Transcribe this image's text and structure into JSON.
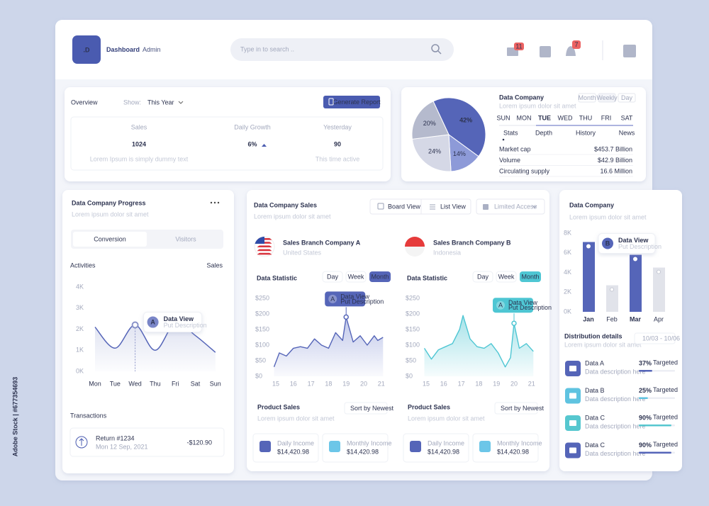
{
  "watermark": "Adobe Stock | #677354693",
  "header": {
    "logo": ".D",
    "title_bold": "Dashboard",
    "title_light": "Admin",
    "search_placeholder": "Type in to search ..",
    "mail_badge": "11",
    "bell_badge": "7"
  },
  "overview": {
    "title": "Overview",
    "show_label": "Show:",
    "show_value": "This Year",
    "button": "Generate Report",
    "stats": [
      {
        "label": "Sales",
        "value": "1024",
        "note": "Lorem Ipsum is simply dummy text"
      },
      {
        "label": "Daily Growth",
        "value": "6%"
      },
      {
        "label": "Yesterday",
        "value": "90",
        "note": "This time active"
      }
    ]
  },
  "market": {
    "pie": {
      "type": "pie",
      "values": [
        42,
        14,
        24,
        20
      ],
      "value_labels": [
        "42%",
        "14%",
        "24%",
        "20%"
      ],
      "colors": [
        "#5565b8",
        "#8d9ad8",
        "#d5d8e6",
        "#b5bacd"
      ]
    },
    "title": "Data Company",
    "subtitle": "Lorem ipsum dolor sit amet",
    "toggles": [
      "Month",
      "Weekly",
      "Day"
    ],
    "days": [
      "SUN",
      "MON",
      "TUE",
      "WED",
      "THU",
      "FRI",
      "SAT"
    ],
    "active_day": "TUE",
    "tabs": [
      "Stats",
      "Depth",
      "History",
      "News"
    ],
    "rows": [
      {
        "label": "Market cap",
        "value": "$453.7 Billion"
      },
      {
        "label": "Volume",
        "value": "$42.9 Billion"
      },
      {
        "label": "Circulating supply",
        "value": "16.6 Million"
      }
    ]
  },
  "progress": {
    "title": "Data Company Progress",
    "subtitle": "Lorem ipsum dolor sit amet",
    "tabs": [
      "Conversion",
      "Visitors"
    ],
    "chart_title": "Activities",
    "chart_side": "Sales",
    "chart": {
      "type": "line",
      "categories": [
        "Mon",
        "Tue",
        "Wed",
        "Thu",
        "Fri",
        "Sat",
        "Sun"
      ],
      "values": [
        2100,
        1100,
        2200,
        1000,
        2300,
        1700,
        900
      ],
      "ylim": [
        0,
        4000
      ],
      "yticks": [
        {
          "value": 0,
          "label": "0K"
        },
        {
          "value": 1000,
          "label": "1K"
        },
        {
          "value": 2000,
          "label": "2K"
        },
        {
          "value": 3000,
          "label": "3K"
        },
        {
          "value": 4000,
          "label": "4K"
        }
      ],
      "color": "#5565b8",
      "highlight": "Wed",
      "tooltip": {
        "badge": "A",
        "title": "Data View",
        "text": "Put Description"
      }
    },
    "transactions": {
      "title": "Transactions",
      "items": [
        {
          "title": "Return #1234",
          "date": "Mon 12 Sep, 2021",
          "amount": "-$120.90"
        }
      ]
    }
  },
  "sales": {
    "title": "Data Company Sales",
    "subtitle": "Lorem ipsum dolor sit amet",
    "views": [
      "Board View",
      "List View"
    ],
    "access": "Limited Access",
    "branches": [
      {
        "name": "Sales Branch Company A",
        "country": "United States",
        "stats": {
          "title": "Data Statistic",
          "periods": [
            "Day",
            "Week",
            "Month"
          ],
          "active": "Month",
          "chart": {
            "type": "line",
            "x": [
              14.9,
              15.2,
              15.6,
              16,
              16.4,
              16.8,
              17.2,
              17.6,
              18,
              18.4,
              18.8,
              19,
              19.4,
              19.8,
              20.2,
              20.6,
              20.8,
              21.1
            ],
            "values": [
              30,
              75,
              65,
              90,
              95,
              90,
              120,
              100,
              90,
              140,
              115,
              190,
              110,
              130,
              100,
              130,
              115,
              125
            ],
            "xlim": [
              14.8,
              21.1
            ],
            "xticks": [
              15,
              16,
              17,
              18,
              19,
              20,
              21
            ],
            "ylim": [
              0,
              250
            ],
            "yticks": [
              {
                "value": 0,
                "label": "$0"
              },
              {
                "value": 50,
                "label": "$50"
              },
              {
                "value": 100,
                "label": "$100"
              },
              {
                "value": 150,
                "label": "$150"
              },
              {
                "value": 200,
                "label": "$200"
              },
              {
                "value": 250,
                "label": "$250"
              }
            ],
            "color": "#5565b8",
            "highlight": 19,
            "tooltip": {
              "badge": "A",
              "title": "Data View",
              "text": "Put Description"
            }
          }
        },
        "product": {
          "title": "Product Sales",
          "sort": "Sort by Newest",
          "subtitle": "Lorem ipsum dolor sit amet",
          "items": [
            {
              "label": "Daily Income",
              "value": "$14,420.98"
            },
            {
              "label": "Monthly Income",
              "value": "$14,420.98"
            }
          ]
        }
      },
      {
        "name": "Sales Branch Company B",
        "country": "Indonesia",
        "stats": {
          "title": "Data Statistic",
          "periods": [
            "Day",
            "Week",
            "Month"
          ],
          "active": "Month",
          "chart": {
            "type": "line",
            "x": [
              14.9,
              15.3,
              15.7,
              16.1,
              16.5,
              16.9,
              17.1,
              17.5,
              17.9,
              18.3,
              18.7,
              19.1,
              19.5,
              19.8,
              20,
              20.3,
              20.7,
              21.1
            ],
            "values": [
              90,
              55,
              85,
              95,
              105,
              150,
              195,
              120,
              95,
              90,
              105,
              75,
              30,
              60,
              170,
              90,
              105,
              80
            ],
            "xlim": [
              14.8,
              21.1
            ],
            "xticks": [
              15,
              16,
              17,
              18,
              19,
              20,
              21
            ],
            "ylim": [
              0,
              250
            ],
            "yticks": [
              {
                "value": 0,
                "label": "$0"
              },
              {
                "value": 50,
                "label": "$50"
              },
              {
                "value": 100,
                "label": "$100"
              },
              {
                "value": 150,
                "label": "$150"
              },
              {
                "value": 200,
                "label": "$200"
              },
              {
                "value": 250,
                "label": "$250"
              }
            ],
            "color": "#4ec6d3",
            "highlight": 20,
            "tooltip": {
              "badge": "A",
              "title": "Data View",
              "text": "Put Description"
            }
          }
        },
        "product": {
          "title": "Product Sales",
          "sort": "Sort by Newest",
          "subtitle": "Lorem ipsum dolor sit amet",
          "items": [
            {
              "label": "Daily Income",
              "value": "$14,420.98"
            },
            {
              "label": "Monthly Income",
              "value": "$14,420.98"
            }
          ]
        }
      }
    ]
  },
  "side": {
    "title": "Data Company",
    "subtitle": "Lorem ipsum dolor sit amet",
    "chart": {
      "type": "bar",
      "categories": [
        "Jan",
        "Feb",
        "Mar",
        "Apr"
      ],
      "values": [
        7100,
        2700,
        5800,
        4500
      ],
      "colors": [
        "#5565b8",
        "#e1e3ea",
        "#5565b8",
        "#e1e3ea"
      ],
      "ylim": [
        0,
        8000
      ],
      "yticks": [
        {
          "value": 0,
          "label": "0K"
        },
        {
          "value": 2000,
          "label": "2K"
        },
        {
          "value": 4000,
          "label": "4K"
        },
        {
          "value": 6000,
          "label": "6K"
        },
        {
          "value": 8000,
          "label": "8K"
        }
      ],
      "highlight": "Mar",
      "tooltip": {
        "badge": "B",
        "title": "Data View",
        "text": "Put Description"
      }
    },
    "details": {
      "title": "Distribution details",
      "subtitle": "Lorem ipsum dolor sit amet",
      "range": "10/03 - 10/06",
      "items": [
        {
          "name": "Data A",
          "description": "Data description here",
          "value": 37,
          "label": "37%",
          "status": "Targeted",
          "color": "#5565b8"
        },
        {
          "name": "Data B",
          "description": "Data description here",
          "value": 25,
          "label": "25%",
          "status": "Targeted",
          "color": "#5fc3e0"
        },
        {
          "name": "Data C",
          "description": "Data description here",
          "value": 90,
          "label": "90%",
          "status": "Targeted",
          "color": "#56c7cf"
        },
        {
          "name": "Data C",
          "description": "Data description here",
          "value": 90,
          "label": "90%",
          "status": "Targeted",
          "color": "#5565b8"
        }
      ]
    }
  }
}
